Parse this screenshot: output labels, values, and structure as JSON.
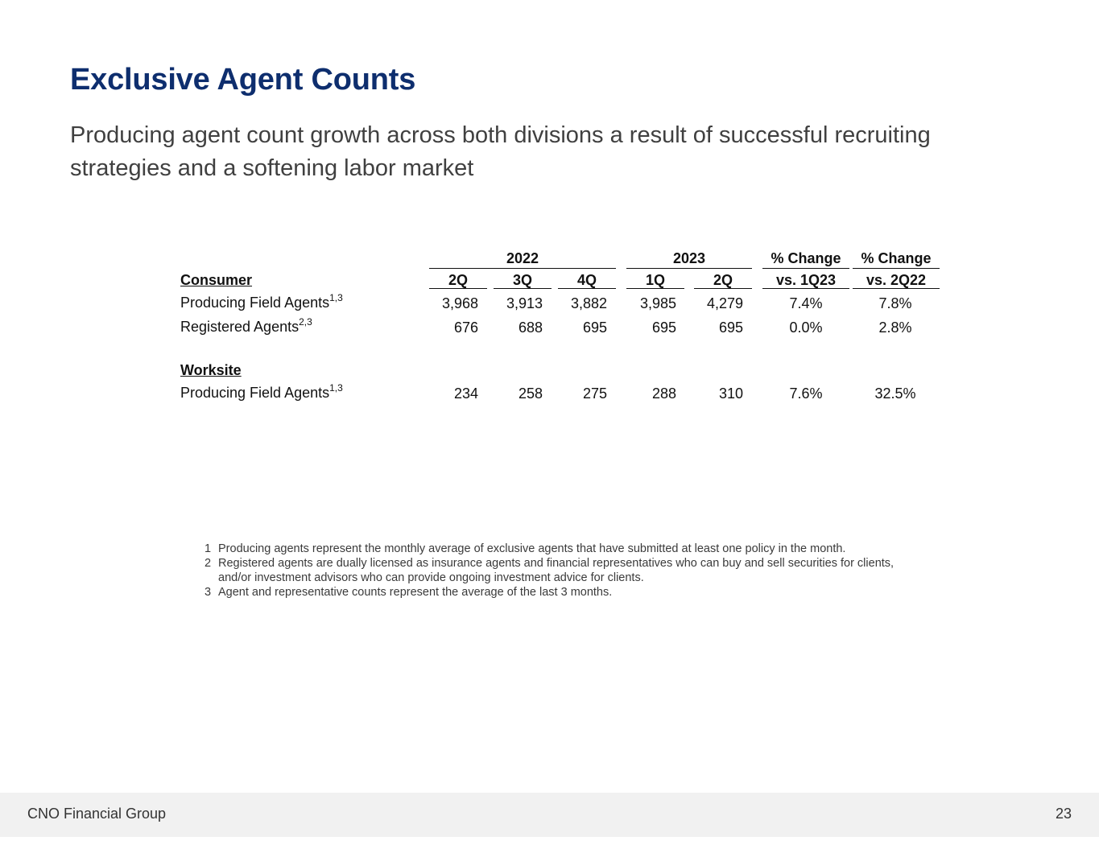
{
  "title": "Exclusive Agent Counts",
  "subtitle": "Producing agent count growth across both divisions a result of successful recruiting strategies and a softening labor market",
  "table": {
    "year_headers": [
      "2022",
      "2023"
    ],
    "change_headers": [
      {
        "line1": "% Change",
        "line2": "vs. 1Q23"
      },
      {
        "line1": "% Change",
        "line2": "vs. 2Q22"
      }
    ],
    "quarters": [
      "2Q",
      "3Q",
      "4Q",
      "1Q",
      "2Q"
    ],
    "sections": [
      {
        "name": "Consumer",
        "rows": [
          {
            "label": "Producing Field Agents",
            "sup": "1,3",
            "values": [
              "3,968",
              "3,913",
              "3,882",
              "3,985",
              "4,279"
            ],
            "changes": [
              "7.4%",
              "7.8%"
            ]
          },
          {
            "label": "Registered Agents",
            "sup": "2,3",
            "values": [
              "676",
              "688",
              "695",
              "695",
              "695"
            ],
            "changes": [
              "0.0%",
              "2.8%"
            ]
          }
        ]
      },
      {
        "name": "Worksite",
        "rows": [
          {
            "label": "Producing Field Agents",
            "sup": "1,3",
            "values": [
              "234",
              "258",
              "275",
              "288",
              "310"
            ],
            "changes": [
              "7.6%",
              "32.5%"
            ]
          }
        ]
      }
    ]
  },
  "footnotes": [
    {
      "num": "1",
      "text": "Producing agents represent the monthly average of exclusive agents that have submitted at least one policy in the month."
    },
    {
      "num": "2",
      "text": "Registered agents are dually licensed as insurance agents and financial representatives who can buy and sell securities for clients, and/or investment advisors who can provide ongoing investment advice for clients."
    },
    {
      "num": "3",
      "text": "Agent and representative counts represent the average of the last 3 months."
    }
  ],
  "footer": {
    "company": "CNO Financial Group",
    "page": "23"
  }
}
